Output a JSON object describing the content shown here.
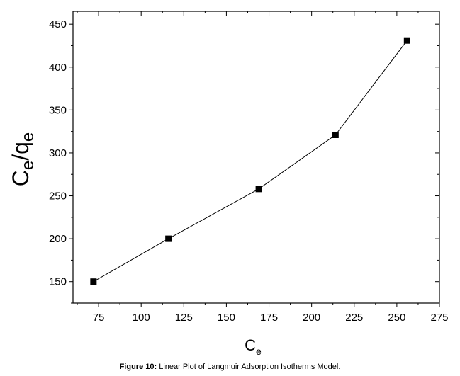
{
  "chart_data": {
    "type": "line",
    "title": "",
    "xlabel": {
      "main": "C",
      "sub": "e"
    },
    "ylabel": {
      "main": "C",
      "sub": "e",
      "rest": "/q",
      "sub2": "e"
    },
    "xlim": [
      60,
      275
    ],
    "ylim": [
      125,
      465
    ],
    "x_ticks": [
      75,
      100,
      125,
      150,
      175,
      200,
      225,
      250,
      275
    ],
    "y_ticks": [
      150,
      200,
      250,
      300,
      350,
      400,
      450
    ],
    "grid": false,
    "legend": "none",
    "series": [
      {
        "x": [
          72,
          116,
          169,
          214,
          256
        ],
        "y": [
          150,
          200,
          258,
          321,
          431
        ],
        "marker": "square"
      }
    ]
  },
  "caption": {
    "label": "Figure 10:",
    "text": " Linear Plot of Langmuir Adsorption Isotherms Model."
  },
  "colors": {
    "line": "#000000",
    "marker": "#000000",
    "axis": "#000000"
  }
}
